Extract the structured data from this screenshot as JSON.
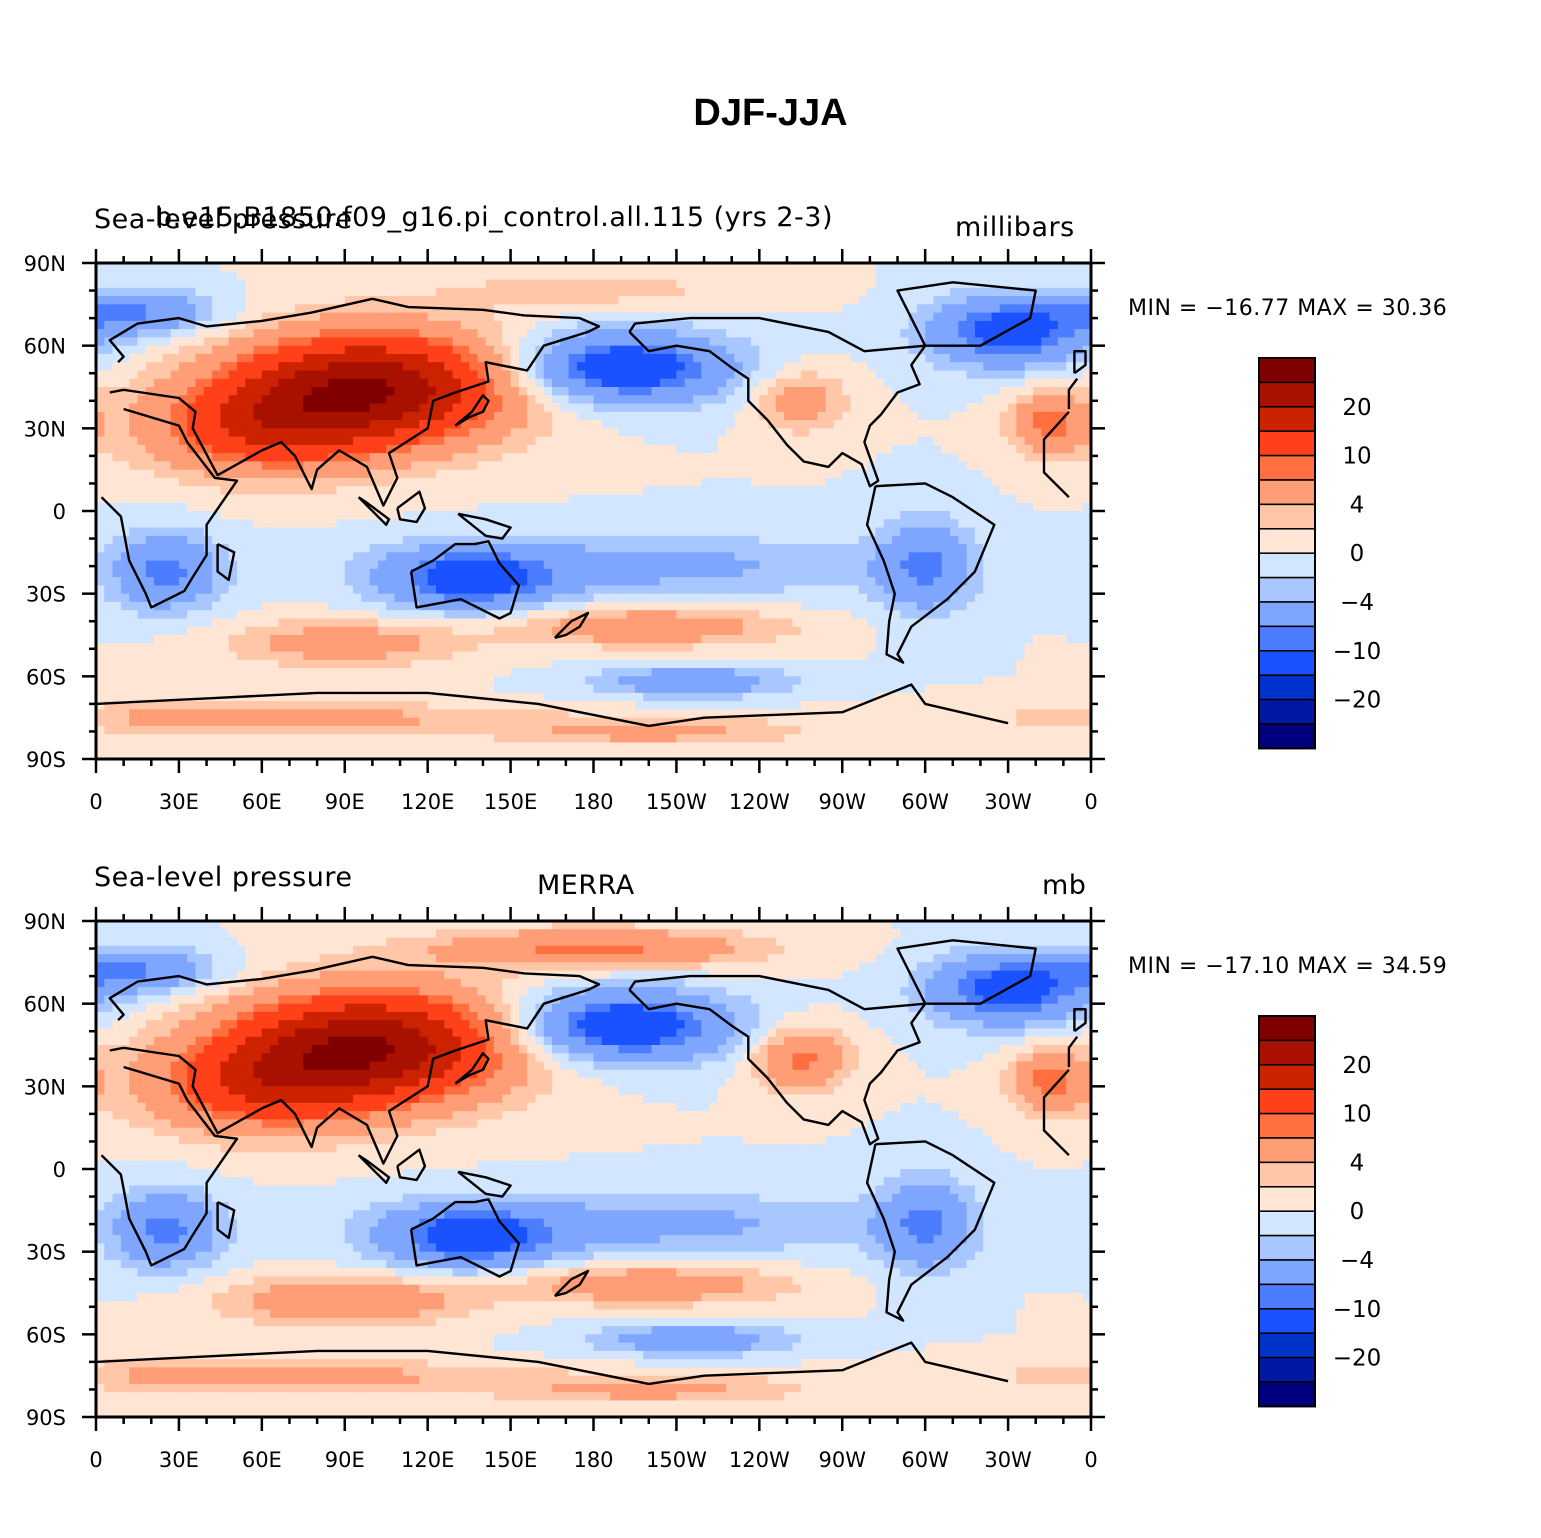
{
  "figure": {
    "title": "DJF-JJA"
  },
  "palette": [
    "#00007f",
    "#0019a5",
    "#0033cc",
    "#1a52ff",
    "#4c7dff",
    "#7fa6ff",
    "#a8c6ff",
    "#d3e6ff",
    "#ffe6d4",
    "#ffc6a8",
    "#ff9e76",
    "#ff6f3f",
    "#ff4019",
    "#cc2200",
    "#a81000",
    "#800000"
  ],
  "coastline_color": "#000000",
  "chart_data": [
    {
      "type": "heatmap",
      "left_title": "Sea-level pressure",
      "center_title": "b.e15.B1850.f09_g16.pi_control.all.115 (yrs 2-3)",
      "right_title": "millibars",
      "min_max_text": "MIN = −16.77 MAX =   30.36",
      "min": -16.77,
      "max": 30.36,
      "x_ticks": [
        "0",
        "30E",
        "60E",
        "90E",
        "120E",
        "150E",
        "180",
        "150W",
        "120W",
        "90W",
        "60W",
        "30W",
        "0"
      ],
      "y_ticks": [
        "90N",
        "60N",
        "30N",
        "0",
        "30S",
        "60S",
        "90S"
      ],
      "xlim": [
        0,
        360
      ],
      "ylim": [
        -90,
        90
      ],
      "colorbar_levels": [
        -30,
        -25,
        -20,
        -15,
        -10,
        -8,
        -4,
        -2,
        0,
        2,
        4,
        8,
        10,
        15,
        20,
        25
      ],
      "colorbar_labels": [
        "20",
        "10",
        "4",
        "0",
        "−4",
        "−10",
        "−20"
      ]
    },
    {
      "type": "heatmap",
      "left_title": "Sea-level pressure",
      "center_title": "MERRA",
      "right_title": "mb",
      "min_max_text": "MIN = −17.10 MAX =   34.59",
      "min": -17.1,
      "max": 34.59,
      "x_ticks": [
        "0",
        "30E",
        "60E",
        "90E",
        "120E",
        "150E",
        "180",
        "150W",
        "120W",
        "90W",
        "60W",
        "30W",
        "0"
      ],
      "y_ticks": [
        "90N",
        "60N",
        "30N",
        "0",
        "30S",
        "60S",
        "90S"
      ],
      "xlim": [
        0,
        360
      ],
      "ylim": [
        -90,
        90
      ],
      "colorbar_levels": [
        -30,
        -25,
        -20,
        -15,
        -10,
        -8,
        -4,
        -2,
        0,
        2,
        4,
        8,
        10,
        15,
        20,
        25
      ],
      "colorbar_labels": [
        "20",
        "10",
        "4",
        "0",
        "−4",
        "−10",
        "−20"
      ]
    }
  ]
}
